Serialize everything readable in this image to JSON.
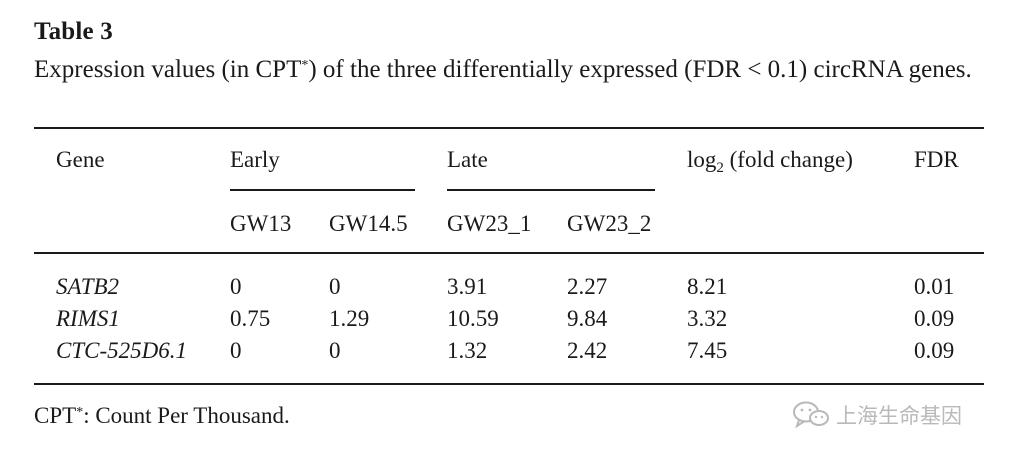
{
  "table": {
    "title": "Table 3",
    "caption_before": "Expression values (in CPT",
    "caption_mark": "*",
    "caption_after": ") of the three differentially expressed (FDR < 0.1) circRNA genes.",
    "headers": {
      "gene": "Gene",
      "early": "Early",
      "late": "Late",
      "log_prefix": "log",
      "log_sub": "2",
      "log_suffix": " (fold change)",
      "fdr": "FDR",
      "gw13": "GW13",
      "gw14_5": "GW14.5",
      "gw23_1": "GW23_1",
      "gw23_2": "GW23_2"
    },
    "rows": [
      {
        "gene": "SATB2",
        "gw13": "0",
        "gw14_5": "0",
        "gw23_1": "3.91",
        "gw23_2": "2.27",
        "log2fc": "8.21",
        "fdr": "0.01"
      },
      {
        "gene": "RIMS1",
        "gw13": "0.75",
        "gw14_5": "1.29",
        "gw23_1": "10.59",
        "gw23_2": "9.84",
        "log2fc": "3.32",
        "fdr": "0.09"
      },
      {
        "gene": "CTC-525D6.1",
        "gw13": "0",
        "gw14_5": "0",
        "gw23_1": "1.32",
        "gw23_2": "2.42",
        "log2fc": "7.45",
        "fdr": "0.09"
      }
    ],
    "footnote_before": "CPT",
    "footnote_mark": "*",
    "footnote_after": ": Count Per Thousand."
  },
  "watermark": {
    "icon": "wechat-icon",
    "text": "上海生命基因",
    "color": "#b9b9b9"
  }
}
